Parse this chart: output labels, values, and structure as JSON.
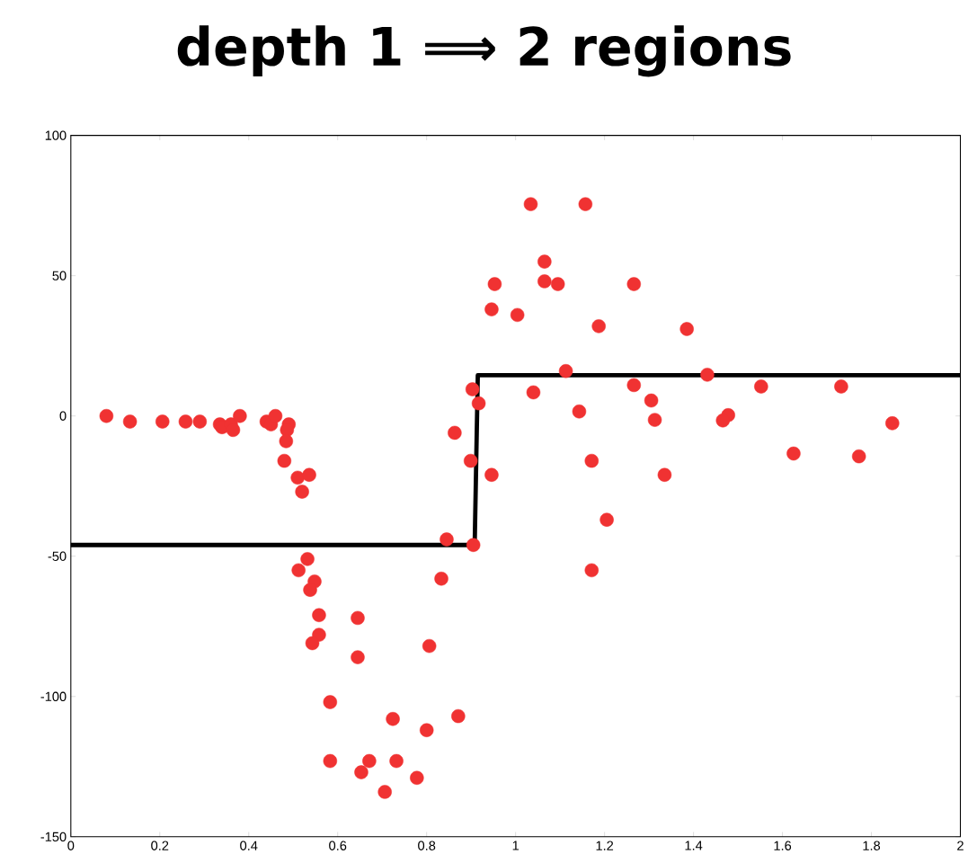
{
  "chart_data": {
    "type": "scatter",
    "title": "depth 1 ⟹ 2 regions",
    "xlim": [
      0,
      2
    ],
    "ylim": [
      -150,
      100
    ],
    "xticks": [
      0,
      0.2,
      0.4,
      0.6,
      0.8,
      1,
      1.2,
      1.4,
      1.6,
      1.8,
      2
    ],
    "yticks": [
      -150,
      -100,
      -50,
      0,
      50,
      100
    ],
    "series": [
      {
        "color": "#f03232",
        "marker": "circle",
        "x": [
          0.08,
          0.133,
          0.206,
          0.258,
          0.29,
          0.335,
          0.34,
          0.36,
          0.365,
          0.38,
          0.44,
          0.45,
          0.46,
          0.49,
          0.486,
          0.484,
          0.48,
          0.51,
          0.536,
          0.52,
          0.532,
          0.512,
          0.548,
          0.538,
          0.558,
          0.645,
          0.558,
          0.543,
          0.645,
          0.806,
          0.583,
          0.724,
          0.8,
          0.871,
          0.583,
          0.671,
          0.732,
          0.653,
          0.778,
          0.706,
          0.845,
          0.833,
          0.905,
          0.899,
          0.946,
          0.863,
          1.034,
          1.157,
          1.065,
          0.953,
          1.065,
          1.095,
          1.266,
          0.946,
          1.004,
          1.187,
          1.385,
          1.113,
          0.903,
          0.917,
          1.04,
          1.266,
          1.305,
          1.143,
          1.313,
          1.171,
          1.335,
          1.205,
          1.171,
          1.431,
          1.552,
          1.732,
          1.478,
          1.466,
          1.847,
          1.625,
          1.772
        ],
        "values": [
          0,
          -2,
          -2,
          -2,
          -2,
          -3,
          -4,
          -3,
          -5,
          0,
          -2,
          -3,
          0,
          -3,
          -5,
          -9,
          -16,
          -22,
          -21,
          -27,
          -51,
          -55,
          -59,
          -62,
          -71,
          -72,
          -78,
          -81,
          -86,
          -82,
          -102,
          -108,
          -112,
          -107,
          -123,
          -123,
          -123,
          -127,
          -129,
          -134,
          -44,
          -58,
          -46,
          -16,
          -21,
          -6,
          75.5,
          75.5,
          55,
          47,
          48,
          47,
          47,
          38,
          36,
          32,
          31,
          16,
          9.5,
          4.5,
          8.4,
          11,
          5.5,
          1.6,
          -1.4,
          -16,
          -21,
          -37,
          -55,
          14.7,
          10.5,
          10.5,
          0.3,
          -1.6,
          -2.6,
          -13.4,
          -14.4
        ]
      },
      {
        "type": "line",
        "color": "#000000",
        "marker": "none",
        "x": [
          0,
          0.908,
          0.915,
          2
        ],
        "values": [
          -46,
          -46,
          14.5,
          14.5
        ]
      }
    ]
  }
}
